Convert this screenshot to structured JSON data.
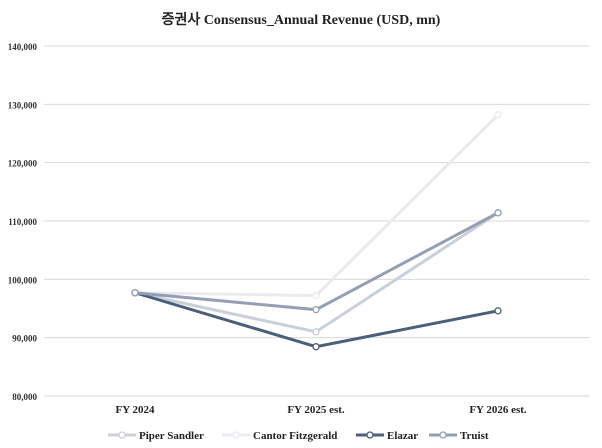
{
  "chart_data": {
    "type": "line",
    "title": "증권사 Consensus_Annual Revenue (USD, mn)",
    "xlabel": "",
    "ylabel": "",
    "categories": [
      "FY 2024",
      "FY 2025 est.",
      "FY 2026 est."
    ],
    "ylim": [
      80000,
      140000
    ],
    "yticks": [
      80000,
      90000,
      100000,
      110000,
      120000,
      130000,
      140000
    ],
    "ytick_labels": [
      "80,000",
      "90,000",
      "100,000",
      "110,000",
      "120,000",
      "130,000",
      "140,000"
    ],
    "grid": true,
    "legend_position": "bottom",
    "series": [
      {
        "name": "Piper Sandler",
        "color": "#c9d0da",
        "values": [
          97700,
          91000,
          111400
        ]
      },
      {
        "name": "Cantor Fitzgerald",
        "color": "#e9ebef",
        "values": [
          97700,
          97200,
          128200
        ]
      },
      {
        "name": "Elazar",
        "color": "#4b5e7a",
        "values": [
          97700,
          88450,
          94600
        ]
      },
      {
        "name": "Truist",
        "color": "#959fb3",
        "values": [
          97700,
          94800,
          111400
        ]
      }
    ]
  }
}
